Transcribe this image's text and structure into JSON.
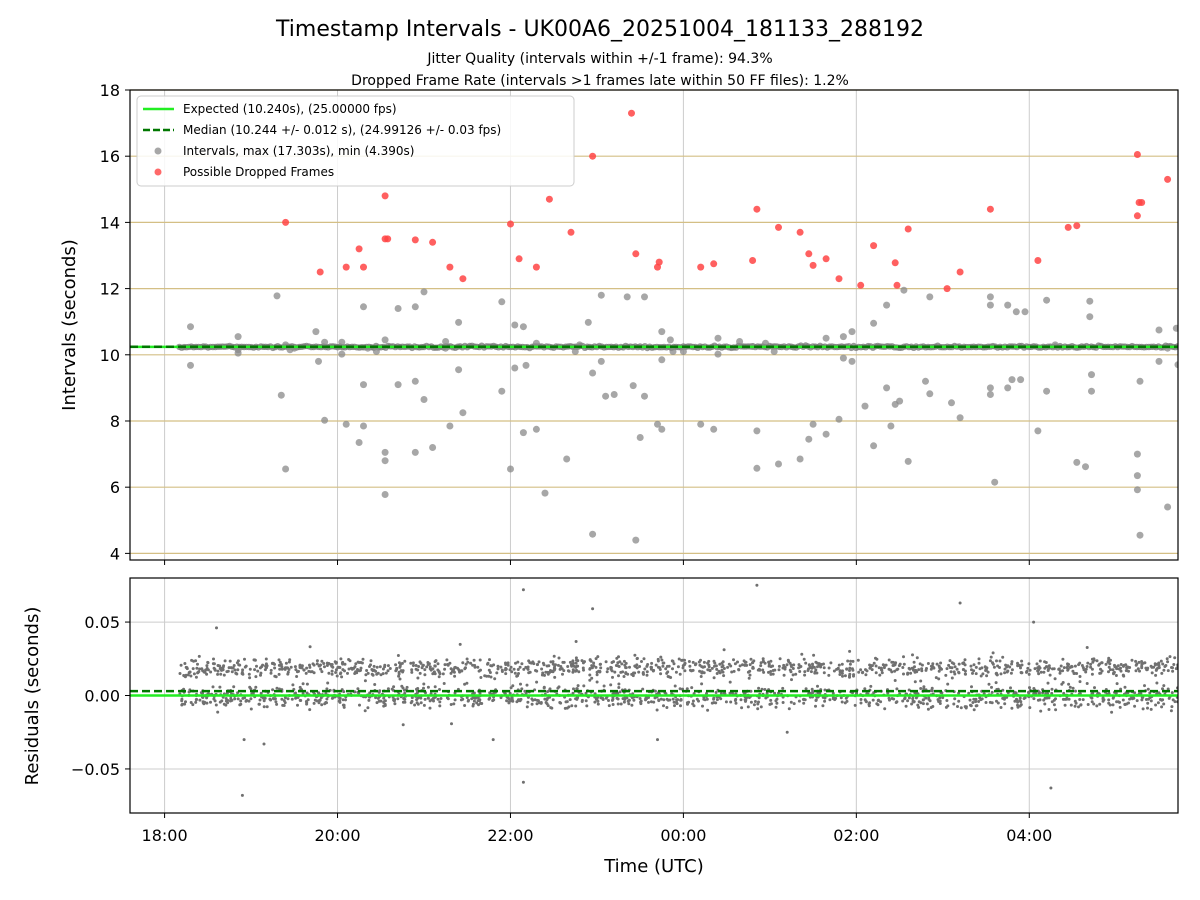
{
  "figure": {
    "title": "Timestamp Intervals - UK00A6_20251004_181133_288192",
    "subtitle_jitter": "Jitter Quality (intervals within +/-1 frame): 94.3%",
    "subtitle_dropped": "Dropped Frame Rate (intervals >1 frames late within 50 FF files): 1.2%"
  },
  "colors": {
    "expected": "#22ee22",
    "median": "#007700",
    "intervals": "#8a8a8a",
    "dropped": "#ff4444",
    "hgrid": "#d4bf85",
    "grid": "#cccccc",
    "residual": "#707070"
  },
  "chart_data": [
    {
      "type": "scatter",
      "panel": "intervals",
      "ylabel": "Intervals (seconds)",
      "xlabel": "",
      "x_units": "hours since 18:00 UTC on 2025-10-04",
      "xlim": [
        -0.4,
        11.72
      ],
      "ylim": [
        3.8,
        18.0
      ],
      "yticks": [
        4,
        6,
        8,
        10,
        12,
        14,
        16,
        18
      ],
      "ytick_labels": [
        "4",
        "6",
        "8",
        "10",
        "12",
        "14",
        "16",
        "18"
      ],
      "xticks": [
        0,
        2,
        4,
        6,
        8,
        10
      ],
      "expected": 10.24,
      "median": 10.244,
      "dense_band": {
        "x_start": 0.17,
        "x_end": 11.72,
        "y": 10.24
      },
      "legend": {
        "location": "upper left",
        "expected": "Expected (10.240s), (25.00000 fps)",
        "median": "Median (10.244 +/- 0.012 s), (24.99126 +/- 0.03 fps)",
        "intervals": "Intervals, max (17.303s), min (4.390s)",
        "dropped": "Possible Dropped Frames"
      },
      "series": [
        {
          "name": "Possible Dropped Frames",
          "points": [
            [
              1.4,
              14.0
            ],
            [
              1.8,
              12.5
            ],
            [
              2.1,
              12.65
            ],
            [
              2.25,
              13.2
            ],
            [
              2.3,
              12.65
            ],
            [
              2.55,
              14.8
            ],
            [
              2.55,
              13.5
            ],
            [
              2.58,
              13.5
            ],
            [
              2.9,
              13.47
            ],
            [
              3.1,
              13.4
            ],
            [
              3.3,
              12.65
            ],
            [
              3.45,
              12.3
            ],
            [
              4.0,
              13.95
            ],
            [
              4.1,
              12.9
            ],
            [
              4.3,
              12.65
            ],
            [
              4.45,
              14.7
            ],
            [
              4.7,
              13.7
            ],
            [
              4.95,
              16.0
            ],
            [
              5.4,
              17.3
            ],
            [
              5.45,
              13.05
            ],
            [
              5.7,
              12.65
            ],
            [
              5.72,
              12.8
            ],
            [
              6.2,
              12.65
            ],
            [
              6.35,
              12.75
            ],
            [
              6.8,
              12.85
            ],
            [
              6.85,
              14.4
            ],
            [
              7.1,
              13.85
            ],
            [
              7.35,
              13.7
            ],
            [
              7.45,
              13.05
            ],
            [
              7.5,
              12.7
            ],
            [
              7.65,
              12.9
            ],
            [
              7.8,
              12.3
            ],
            [
              8.05,
              12.1
            ],
            [
              8.2,
              13.3
            ],
            [
              8.45,
              12.78
            ],
            [
              8.47,
              12.1
            ],
            [
              8.6,
              13.8
            ],
            [
              9.05,
              12.0
            ],
            [
              9.2,
              12.5
            ],
            [
              9.55,
              14.4
            ],
            [
              10.1,
              12.85
            ],
            [
              10.45,
              13.85
            ],
            [
              10.55,
              13.9
            ],
            [
              11.25,
              16.05
            ],
            [
              11.27,
              14.6
            ],
            [
              11.3,
              14.6
            ],
            [
              11.25,
              14.2
            ],
            [
              11.6,
              15.3
            ]
          ]
        },
        {
          "name": "Intervals",
          "points": [
            [
              0.3,
              10.85
            ],
            [
              0.3,
              9.68
            ],
            [
              0.85,
              10.55
            ],
            [
              0.85,
              10.05
            ],
            [
              1.3,
              11.78
            ],
            [
              1.35,
              8.78
            ],
            [
              1.4,
              6.55
            ],
            [
              1.4,
              10.3
            ],
            [
              1.45,
              10.15
            ],
            [
              1.5,
              10.2
            ],
            [
              1.75,
              10.7
            ],
            [
              1.78,
              9.8
            ],
            [
              1.85,
              8.02
            ],
            [
              1.85,
              10.38
            ],
            [
              2.05,
              10.38
            ],
            [
              2.05,
              10.02
            ],
            [
              2.1,
              7.9
            ],
            [
              2.25,
              7.35
            ],
            [
              2.3,
              11.45
            ],
            [
              2.3,
              9.1
            ],
            [
              2.3,
              7.85
            ],
            [
              2.35,
              10.2
            ],
            [
              2.45,
              10.1
            ],
            [
              2.55,
              7.05
            ],
            [
              2.55,
              6.8
            ],
            [
              2.55,
              5.78
            ],
            [
              2.55,
              10.45
            ],
            [
              2.7,
              11.4
            ],
            [
              2.7,
              9.1
            ],
            [
              2.9,
              11.45
            ],
            [
              2.9,
              9.2
            ],
            [
              2.9,
              7.05
            ],
            [
              3.0,
              11.9
            ],
            [
              3.0,
              8.65
            ],
            [
              3.1,
              7.2
            ],
            [
              3.25,
              10.4
            ],
            [
              3.3,
              7.85
            ],
            [
              3.4,
              10.98
            ],
            [
              3.4,
              9.55
            ],
            [
              3.45,
              8.25
            ],
            [
              3.9,
              11.6
            ],
            [
              3.9,
              8.9
            ],
            [
              4.0,
              6.55
            ],
            [
              4.05,
              10.9
            ],
            [
              4.05,
              9.6
            ],
            [
              4.15,
              7.65
            ],
            [
              4.15,
              10.85
            ],
            [
              4.18,
              9.68
            ],
            [
              4.3,
              10.35
            ],
            [
              4.3,
              7.75
            ],
            [
              4.4,
              5.82
            ],
            [
              4.65,
              6.85
            ],
            [
              4.8,
              10.3
            ],
            [
              4.9,
              10.98
            ],
            [
              4.95,
              9.45
            ],
            [
              4.95,
              4.58
            ],
            [
              5.05,
              11.8
            ],
            [
              5.05,
              9.8
            ],
            [
              5.1,
              8.75
            ],
            [
              5.35,
              11.75
            ],
            [
              5.2,
              8.8
            ],
            [
              5.42,
              9.07
            ],
            [
              5.45,
              4.4
            ],
            [
              5.5,
              7.5
            ],
            [
              5.55,
              11.75
            ],
            [
              5.55,
              8.75
            ],
            [
              5.75,
              10.7
            ],
            [
              5.75,
              9.85
            ],
            [
              5.7,
              7.9
            ],
            [
              5.75,
              7.75
            ],
            [
              5.85,
              10.45
            ],
            [
              5.88,
              10.1
            ],
            [
              6.2,
              7.9
            ],
            [
              6.35,
              7.75
            ],
            [
              6.4,
              10.5
            ],
            [
              6.4,
              10.02
            ],
            [
              6.65,
              10.4
            ],
            [
              6.8,
              10.25
            ],
            [
              6.85,
              7.7
            ],
            [
              6.85,
              6.57
            ],
            [
              6.95,
              10.35
            ],
            [
              7.05,
              10.1
            ],
            [
              7.1,
              6.7
            ],
            [
              7.35,
              6.85
            ],
            [
              7.45,
              7.45
            ],
            [
              7.5,
              7.9
            ],
            [
              7.65,
              10.5
            ],
            [
              7.65,
              7.6
            ],
            [
              7.8,
              8.05
            ],
            [
              7.85,
              10.55
            ],
            [
              7.85,
              9.9
            ],
            [
              7.95,
              10.7
            ],
            [
              7.95,
              9.8
            ],
            [
              8.2,
              10.95
            ],
            [
              8.1,
              8.45
            ],
            [
              8.2,
              7.25
            ],
            [
              8.35,
              11.5
            ],
            [
              8.35,
              9.0
            ],
            [
              8.4,
              7.85
            ],
            [
              8.45,
              8.5
            ],
            [
              8.55,
              11.95
            ],
            [
              8.5,
              8.6
            ],
            [
              8.6,
              6.78
            ],
            [
              8.8,
              9.2
            ],
            [
              8.85,
              11.75
            ],
            [
              8.85,
              8.82
            ],
            [
              9.1,
              8.55
            ],
            [
              9.2,
              8.1
            ],
            [
              9.55,
              11.5
            ],
            [
              9.55,
              11.75
            ],
            [
              9.55,
              9.0
            ],
            [
              9.55,
              8.8
            ],
            [
              9.6,
              6.15
            ],
            [
              9.75,
              11.5
            ],
            [
              9.75,
              9.0
            ],
            [
              9.8,
              9.25
            ],
            [
              9.85,
              11.3
            ],
            [
              9.9,
              9.25
            ],
            [
              9.95,
              11.3
            ],
            [
              10.1,
              7.7
            ],
            [
              10.2,
              11.65
            ],
            [
              10.2,
              8.9
            ],
            [
              10.3,
              10.3
            ],
            [
              10.55,
              6.75
            ],
            [
              10.65,
              6.62
            ],
            [
              10.7,
              11.62
            ],
            [
              10.7,
              11.15
            ],
            [
              10.72,
              9.4
            ],
            [
              10.72,
              8.9
            ],
            [
              11.25,
              7.0
            ],
            [
              11.25,
              6.35
            ],
            [
              11.25,
              5.92
            ],
            [
              11.28,
              9.2
            ],
            [
              11.28,
              4.55
            ],
            [
              11.5,
              10.75
            ],
            [
              11.5,
              9.8
            ],
            [
              11.6,
              5.4
            ],
            [
              11.6,
              10.2
            ],
            [
              11.7,
              10.8
            ],
            [
              11.72,
              9.7
            ],
            [
              0.85,
              10.15
            ],
            [
              3.25,
              10.2
            ],
            [
              4.75,
              10.1
            ],
            [
              6.0,
              10.1
            ]
          ]
        }
      ]
    },
    {
      "type": "scatter",
      "panel": "residuals",
      "ylabel": "Residuals (seconds)",
      "xlabel": "Time (UTC)",
      "x_units": "hours since 18:00 UTC on 2025-10-04",
      "xlim": [
        -0.4,
        11.72
      ],
      "ylim": [
        -0.08,
        0.08
      ],
      "yticks": [
        0.05,
        0.0,
        -0.05
      ],
      "ytick_labels": [
        "0.05",
        "0.00",
        "−0.05"
      ],
      "xticks": [
        0,
        2,
        4,
        6,
        8,
        10
      ],
      "xtick_labels": [
        "18:00",
        "20:00",
        "22:00",
        "00:00",
        "02:00",
        "04:00"
      ],
      "expected": 0.0,
      "median": 0.003,
      "dense_bands": [
        {
          "label": "upper band",
          "center": 0.019,
          "spread": 0.005
        },
        {
          "label": "lower band",
          "center": -0.001,
          "spread": 0.006
        }
      ],
      "outliers": [
        [
          0.6,
          0.046
        ],
        [
          0.9,
          -0.068
        ],
        [
          1.15,
          -0.033
        ],
        [
          0.92,
          -0.03
        ],
        [
          4.15,
          0.072
        ],
        [
          4.15,
          -0.059
        ],
        [
          4.95,
          0.059
        ],
        [
          6.85,
          0.075
        ],
        [
          9.2,
          0.063
        ],
        [
          10.05,
          0.05
        ],
        [
          10.25,
          -0.063
        ],
        [
          5.7,
          -0.03
        ],
        [
          7.2,
          -0.025
        ],
        [
          3.8,
          -0.03
        ]
      ]
    }
  ]
}
